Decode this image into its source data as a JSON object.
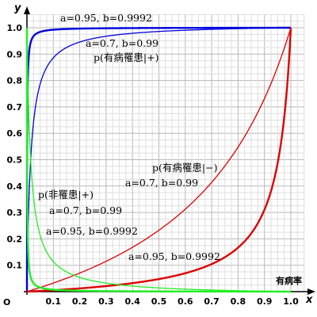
{
  "chart_data": {
    "type": "line",
    "xlabel": "x",
    "ylabel": "y",
    "origin_label": "O",
    "x_title": "有病率",
    "xlim": [
      0,
      1.05
    ],
    "ylim": [
      0,
      1.05
    ],
    "grid": true,
    "x_ticks": [
      "0.1",
      "0.2",
      "0.3",
      "0.4",
      "0.5",
      "0.6",
      "0.7",
      "0.8",
      "0.9",
      "1.0"
    ],
    "y_ticks": [
      "0.1",
      "0.2",
      "0.3",
      "0.4",
      "0.5",
      "0.6",
      "0.7",
      "0.8",
      "0.9",
      "1.0"
    ],
    "series": [
      {
        "kind": "pos",
        "a": 0.95,
        "b": 0.9992,
        "color": "#0000dd",
        "width": 2.4
      },
      {
        "kind": "pos",
        "a": 0.7,
        "b": 0.99,
        "color": "#0000dd",
        "width": 1.3
      },
      {
        "kind": "neg",
        "a": 0.95,
        "b": 0.9992,
        "color": "#dd0000",
        "width": 2.4
      },
      {
        "kind": "neg",
        "a": 0.7,
        "b": 0.99,
        "color": "#dd0000",
        "width": 1.3
      },
      {
        "kind": "notpos",
        "a": 0.95,
        "b": 0.9992,
        "color": "#22ee22",
        "width": 2.4
      },
      {
        "kind": "notpos",
        "a": 0.7,
        "b": 0.99,
        "color": "#22ee22",
        "width": 1.3
      }
    ],
    "annotations": {
      "blue_thick": "a=0.95, b=0.9992",
      "blue_thin": "a=0.7, b=0.99",
      "blue_title": "p(有病罹患|+)",
      "red_title": "p(有病罹患|−)",
      "red_thin": "a=0.7, b=0.99",
      "red_thick": "a=0.95, b=0.9992",
      "green_title": "p(非罹患|+)",
      "green_thin": "a=0.7, b=0.99",
      "green_thick": "a=0.95, b=0.9992"
    }
  }
}
